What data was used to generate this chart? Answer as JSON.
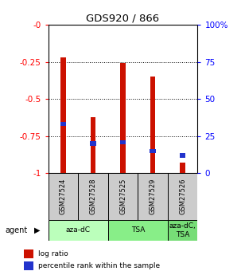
{
  "title": "GDS920 / 866",
  "samples": [
    "GSM27524",
    "GSM27528",
    "GSM27525",
    "GSM27529",
    "GSM27526"
  ],
  "log_ratios": [
    -0.22,
    -0.62,
    -0.26,
    -0.35,
    -0.93
  ],
  "percentile_ranks_pct": [
    33,
    20,
    21,
    15,
    12
  ],
  "agents": [
    {
      "label": "aza-dC",
      "start": 0,
      "end": 2,
      "color": "#bbffbb"
    },
    {
      "label": "TSA",
      "start": 2,
      "end": 4,
      "color": "#88ee88"
    },
    {
      "label": "aza-dC,\nTSA",
      "start": 4,
      "end": 5,
      "color": "#77dd77"
    }
  ],
  "bar_color": "#cc1100",
  "marker_color": "#2233cc",
  "ylim": [
    -1.0,
    0.0
  ],
  "yticks": [
    -1.0,
    -0.75,
    -0.5,
    -0.25,
    0.0
  ],
  "ytick_labels_left": [
    "-1",
    "-0.75",
    "-0.5",
    "-0.25",
    "-0"
  ],
  "ytick_labels_right": [
    "0",
    "25",
    "50",
    "75",
    "100%"
  ],
  "bar_width": 0.18,
  "background_color": "#ffffff",
  "sample_bg": "#cccccc"
}
